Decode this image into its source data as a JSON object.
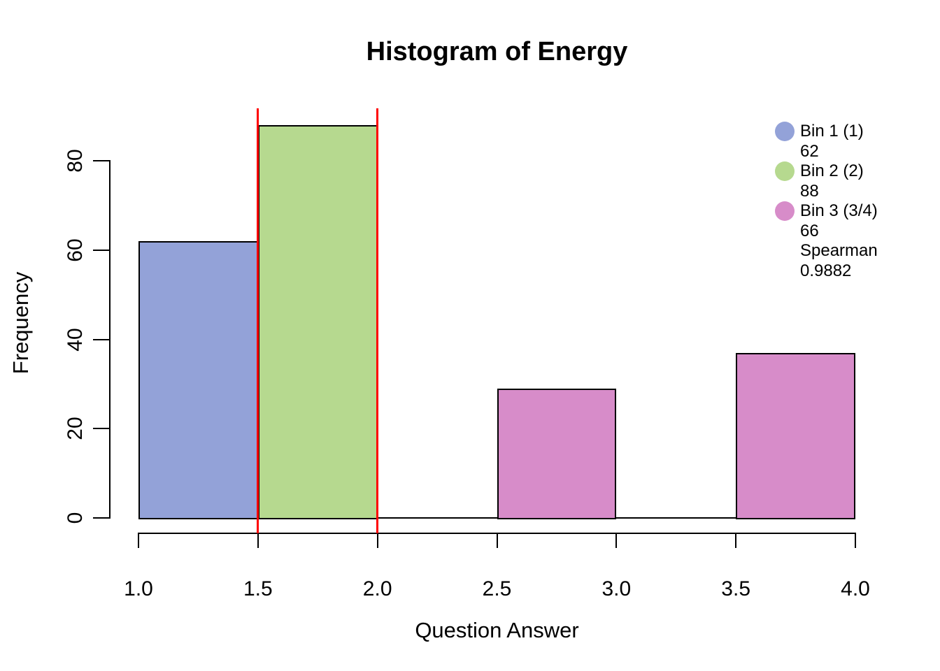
{
  "chart_data": {
    "type": "bar",
    "title": "Histogram of Energy",
    "xlabel": "Question Answer",
    "ylabel": "Frequency",
    "xlim": [
      1.0,
      4.0
    ],
    "ylim": [
      0,
      80
    ],
    "grid": "off",
    "x_ticks": [
      1.0,
      1.5,
      2.0,
      2.5,
      3.0,
      3.5,
      4.0
    ],
    "x_tick_labels": [
      "1.0",
      "1.5",
      "2.0",
      "2.5",
      "3.0",
      "3.5",
      "4.0"
    ],
    "y_ticks": [
      0,
      20,
      40,
      60,
      80
    ],
    "y_tick_labels": [
      "0",
      "20",
      "40",
      "60",
      "80"
    ],
    "bars": [
      {
        "name": "bin-1",
        "from": 1.0,
        "to": 1.5,
        "value": 62,
        "color": "#93A2D8"
      },
      {
        "name": "bin-2",
        "from": 1.5,
        "to": 2.0,
        "value": 88,
        "color": "#B6D98F"
      },
      {
        "name": "bin-3a",
        "from": 2.5,
        "to": 3.0,
        "value": 29,
        "color": "#D78CC9"
      },
      {
        "name": "bin-3b",
        "from": 3.5,
        "to": 4.0,
        "value": 37,
        "color": "#D78CC9"
      }
    ],
    "bar_border_color": "#000000",
    "vlines": [
      {
        "x": 1.5,
        "color": "#FF0000"
      },
      {
        "x": 2.0,
        "color": "#FF0000"
      }
    ],
    "legend_position": "top-right"
  },
  "legend": {
    "items": [
      {
        "swatch_color": "#93A2D8",
        "lines": [
          "Bin 1 (1)",
          "62"
        ]
      },
      {
        "swatch_color": "#B6D98F",
        "lines": [
          "Bin 2 (2)",
          "88"
        ]
      },
      {
        "swatch_color": "#D78CC9",
        "lines": [
          "Bin 3 (3/4)",
          "66",
          "Spearman",
          "0.9882"
        ]
      }
    ]
  }
}
